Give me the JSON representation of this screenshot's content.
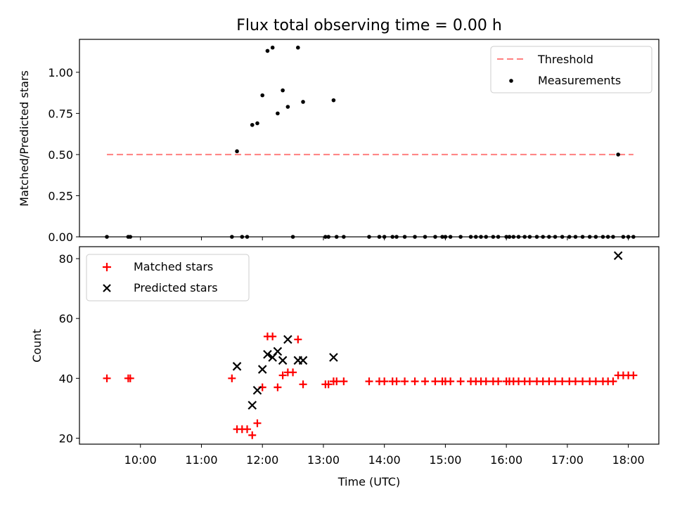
{
  "chart_data": [
    {
      "type": "scatter",
      "title": "Flux total observing time = 0.00 h",
      "ylabel": "Matched/Predicted stars",
      "xlabel": "",
      "ylim": [
        0,
        1.2
      ],
      "yticks": [
        0.0,
        0.25,
        0.5,
        0.75,
        1.0
      ],
      "ytick_labels": [
        "0.00",
        "0.25",
        "0.50",
        "0.75",
        "1.00"
      ],
      "legend_position": "top-right",
      "threshold": {
        "name": "Threshold",
        "value": 0.5,
        "x_start": "09:27",
        "x_end": "18:05",
        "color": "#ff7f7f"
      },
      "series": [
        {
          "name": "Measurements",
          "color": "#000000",
          "points": [
            [
              "09:27",
              0.0
            ],
            [
              "09:48",
              0.0
            ],
            [
              "09:50",
              0.0
            ],
            [
              "11:30",
              0.0
            ],
            [
              "11:35",
              0.52
            ],
            [
              "11:40",
              0.0
            ],
            [
              "11:45",
              0.0
            ],
            [
              "11:50",
              0.68
            ],
            [
              "11:55",
              0.69
            ],
            [
              "12:00",
              0.86
            ],
            [
              "12:05",
              1.13
            ],
            [
              "12:10",
              1.15
            ],
            [
              "12:15",
              0.75
            ],
            [
              "12:20",
              0.89
            ],
            [
              "12:25",
              0.79
            ],
            [
              "12:30",
              0.0
            ],
            [
              "12:35",
              1.15
            ],
            [
              "12:40",
              0.82
            ],
            [
              "13:02",
              0.0
            ],
            [
              "13:05",
              0.0
            ],
            [
              "13:10",
              0.83
            ],
            [
              "13:13",
              0.0
            ],
            [
              "13:20",
              0.0
            ],
            [
              "13:45",
              0.0
            ],
            [
              "13:55",
              0.0
            ],
            [
              "14:00",
              0.0
            ],
            [
              "14:08",
              0.0
            ],
            [
              "14:12",
              0.0
            ],
            [
              "14:20",
              0.0
            ],
            [
              "14:30",
              0.0
            ],
            [
              "14:40",
              0.0
            ],
            [
              "14:50",
              0.0
            ],
            [
              "14:57",
              0.0
            ],
            [
              "15:00",
              0.0
            ],
            [
              "15:05",
              0.0
            ],
            [
              "15:15",
              0.0
            ],
            [
              "15:25",
              0.0
            ],
            [
              "15:30",
              0.0
            ],
            [
              "15:35",
              0.0
            ],
            [
              "15:40",
              0.0
            ],
            [
              "15:47",
              0.0
            ],
            [
              "15:52",
              0.0
            ],
            [
              "16:00",
              0.0
            ],
            [
              "16:03",
              0.0
            ],
            [
              "16:07",
              0.0
            ],
            [
              "16:12",
              0.0
            ],
            [
              "16:18",
              0.0
            ],
            [
              "16:23",
              0.0
            ],
            [
              "16:30",
              0.0
            ],
            [
              "16:36",
              0.0
            ],
            [
              "16:42",
              0.0
            ],
            [
              "16:48",
              0.0
            ],
            [
              "16:55",
              0.0
            ],
            [
              "17:02",
              0.0
            ],
            [
              "17:08",
              0.0
            ],
            [
              "17:15",
              0.0
            ],
            [
              "17:22",
              0.0
            ],
            [
              "17:28",
              0.0
            ],
            [
              "17:35",
              0.0
            ],
            [
              "17:40",
              0.0
            ],
            [
              "17:45",
              0.0
            ],
            [
              "17:50",
              0.5
            ],
            [
              "17:55",
              0.0
            ],
            [
              "18:00",
              0.0
            ],
            [
              "18:05",
              0.0
            ]
          ]
        }
      ]
    },
    {
      "type": "scatter",
      "title": "",
      "xlabel": "Time (UTC)",
      "ylabel": "Count",
      "ylim": [
        18,
        84
      ],
      "yticks": [
        20,
        40,
        60,
        80
      ],
      "ytick_labels": [
        "20",
        "40",
        "60",
        "80"
      ],
      "xlim": [
        "09:00",
        "18:30"
      ],
      "xticks": [
        "10:00",
        "11:00",
        "12:00",
        "13:00",
        "14:00",
        "15:00",
        "16:00",
        "17:00",
        "18:00"
      ],
      "legend_position": "top-left",
      "series": [
        {
          "name": "Matched stars",
          "marker": "plus",
          "color": "#ff0000",
          "points": [
            [
              "09:27",
              40
            ],
            [
              "09:48",
              40
            ],
            [
              "09:50",
              40
            ],
            [
              "11:30",
              40
            ],
            [
              "11:35",
              23
            ],
            [
              "11:40",
              23
            ],
            [
              "11:45",
              23
            ],
            [
              "11:50",
              21
            ],
            [
              "11:55",
              25
            ],
            [
              "12:00",
              37
            ],
            [
              "12:05",
              54
            ],
            [
              "12:10",
              54
            ],
            [
              "12:15",
              37
            ],
            [
              "12:20",
              41
            ],
            [
              "12:25",
              42
            ],
            [
              "12:30",
              42
            ],
            [
              "12:35",
              53
            ],
            [
              "12:40",
              38
            ],
            [
              "13:02",
              38
            ],
            [
              "13:05",
              38
            ],
            [
              "13:10",
              39
            ],
            [
              "13:13",
              39
            ],
            [
              "13:20",
              39
            ],
            [
              "13:45",
              39
            ],
            [
              "13:55",
              39
            ],
            [
              "14:00",
              39
            ],
            [
              "14:08",
              39
            ],
            [
              "14:12",
              39
            ],
            [
              "14:20",
              39
            ],
            [
              "14:30",
              39
            ],
            [
              "14:40",
              39
            ],
            [
              "14:50",
              39
            ],
            [
              "14:57",
              39
            ],
            [
              "15:00",
              39
            ],
            [
              "15:05",
              39
            ],
            [
              "15:15",
              39
            ],
            [
              "15:25",
              39
            ],
            [
              "15:30",
              39
            ],
            [
              "15:35",
              39
            ],
            [
              "15:40",
              39
            ],
            [
              "15:47",
              39
            ],
            [
              "15:52",
              39
            ],
            [
              "16:00",
              39
            ],
            [
              "16:03",
              39
            ],
            [
              "16:07",
              39
            ],
            [
              "16:12",
              39
            ],
            [
              "16:18",
              39
            ],
            [
              "16:23",
              39
            ],
            [
              "16:30",
              39
            ],
            [
              "16:36",
              39
            ],
            [
              "16:42",
              39
            ],
            [
              "16:48",
              39
            ],
            [
              "16:55",
              39
            ],
            [
              "17:02",
              39
            ],
            [
              "17:08",
              39
            ],
            [
              "17:15",
              39
            ],
            [
              "17:22",
              39
            ],
            [
              "17:28",
              39
            ],
            [
              "17:35",
              39
            ],
            [
              "17:40",
              39
            ],
            [
              "17:45",
              39
            ],
            [
              "17:50",
              41
            ],
            [
              "17:55",
              41
            ],
            [
              "18:00",
              41
            ],
            [
              "18:05",
              41
            ]
          ]
        },
        {
          "name": "Predicted stars",
          "marker": "x",
          "color": "#000000",
          "points": [
            [
              "11:35",
              44
            ],
            [
              "11:50",
              31
            ],
            [
              "11:55",
              36
            ],
            [
              "12:00",
              43
            ],
            [
              "12:05",
              48
            ],
            [
              "12:10",
              47
            ],
            [
              "12:15",
              49
            ],
            [
              "12:20",
              46
            ],
            [
              "12:25",
              53
            ],
            [
              "12:35",
              46
            ],
            [
              "12:40",
              46
            ],
            [
              "13:10",
              47
            ],
            [
              "17:50",
              81
            ]
          ]
        }
      ]
    }
  ]
}
